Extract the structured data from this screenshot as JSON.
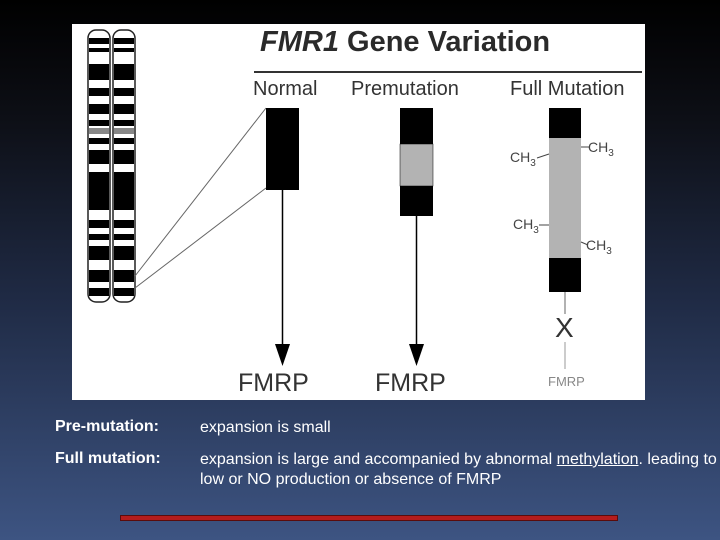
{
  "figure": {
    "title_gene": "FMR1",
    "title_rest": "Gene Variation",
    "columns": {
      "normal": "Normal",
      "premutation": "Premutation",
      "full_mutation": "Full Mutation"
    },
    "outcomes": {
      "normal": "FMRP",
      "premutation": "FMRP",
      "full_mutation": "FMRP",
      "blocked_symbol": "X"
    },
    "methyl_group": "CH",
    "methyl_subscript": "3",
    "colors": {
      "repeat_block": "#000000",
      "expansion": "#b3b3b3",
      "accent_line": "#b51c1c"
    }
  },
  "definitions": [
    {
      "term": "Pre-mutation:",
      "description": "expansion is small"
    },
    {
      "term": "Full mutation:",
      "description_before": "expansion is large and accompanied by abnormal ",
      "description_link": "methylation",
      "description_after": ". leading to low or NO production or absence of FMRP"
    }
  ]
}
